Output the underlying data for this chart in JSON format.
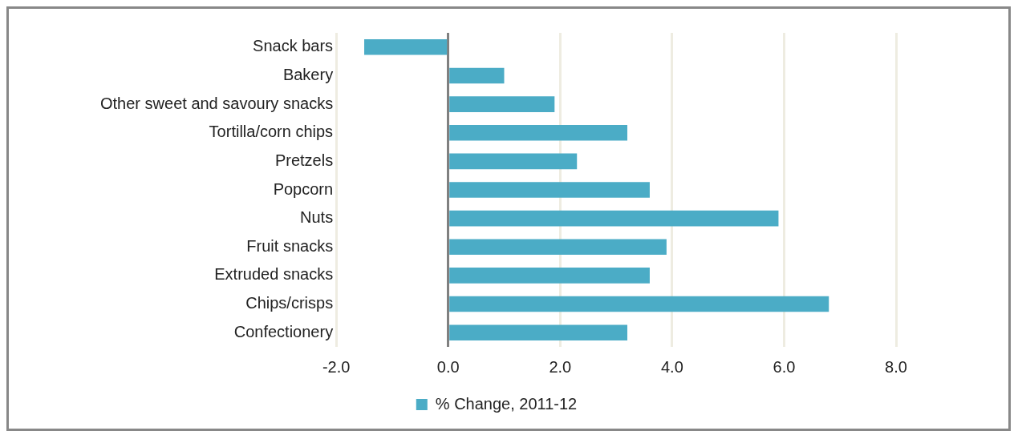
{
  "chart_data": {
    "type": "bar",
    "orientation": "horizontal",
    "categories": [
      "Snack bars",
      "Bakery",
      "Other sweet and savoury snacks",
      "Tortilla/corn chips",
      "Pretzels",
      "Popcorn",
      "Nuts",
      "Fruit snacks",
      "Extruded snacks",
      "Chips/crisps",
      "Confectionery"
    ],
    "series": [
      {
        "name": "% Change, 2011-12",
        "color": "#4bacc6",
        "values": [
          -1.5,
          1.0,
          1.9,
          3.2,
          2.3,
          3.6,
          5.9,
          3.9,
          3.6,
          6.8,
          3.2
        ]
      }
    ],
    "xlim": [
      -2,
      8
    ],
    "xticks": [
      {
        "value": -2,
        "label": "-2.0"
      },
      {
        "value": 0,
        "label": "0.0"
      },
      {
        "value": 2,
        "label": "2.0"
      },
      {
        "value": 4,
        "label": "4.0"
      },
      {
        "value": 6,
        "label": "6.0"
      },
      {
        "value": 8,
        "label": "8.0"
      }
    ],
    "grid": "x",
    "legend": "bottom"
  }
}
